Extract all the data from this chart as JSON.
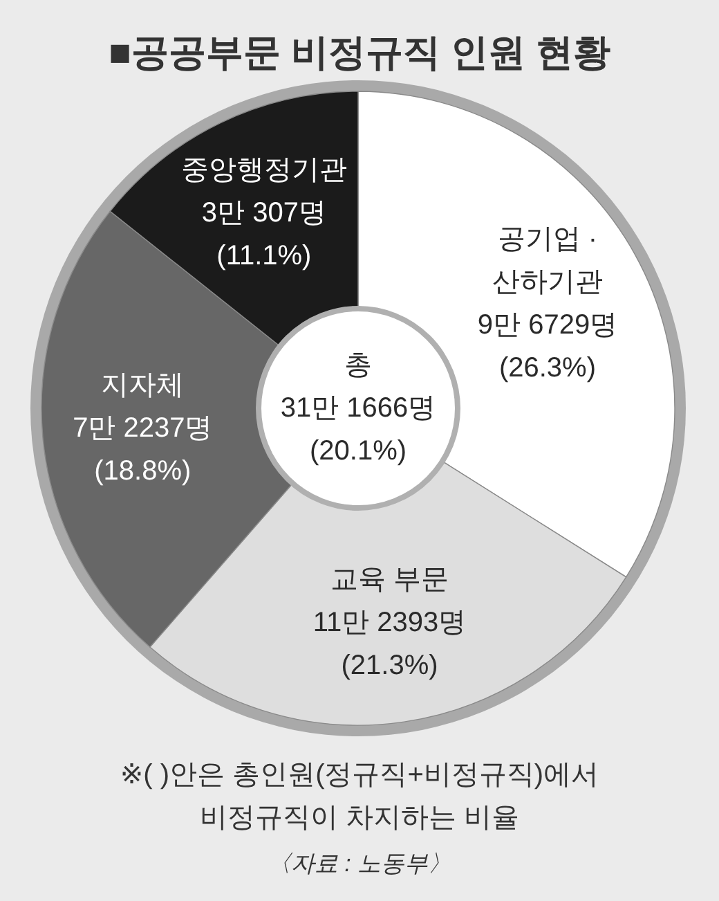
{
  "chart_data": {
    "type": "donut",
    "title": "■공공부문 비정규직 인원 현황",
    "categories": [
      "공기업 ·\n산하기관",
      "교육 부문",
      "지자체",
      "중앙행정기관"
    ],
    "values": [
      26.3,
      21.3,
      18.8,
      11.1
    ],
    "colors": [
      "#ffffff",
      "#dedede",
      "#676767",
      "#1b1b1b"
    ],
    "value_labels": [
      "9만 6729명\n(26.3%)",
      "11만 2393명\n(21.3%)",
      "7만 2237명\n(18.8%)",
      "3만 307명\n(11.1%)"
    ],
    "annotations": [
      "총\n31만 1666명\n(20.1%)",
      "※( )안은 총인원(정규직+비정규직)에서\n비정규직이 차지하는 비율",
      "〈자료 : 노동부〉"
    ]
  }
}
